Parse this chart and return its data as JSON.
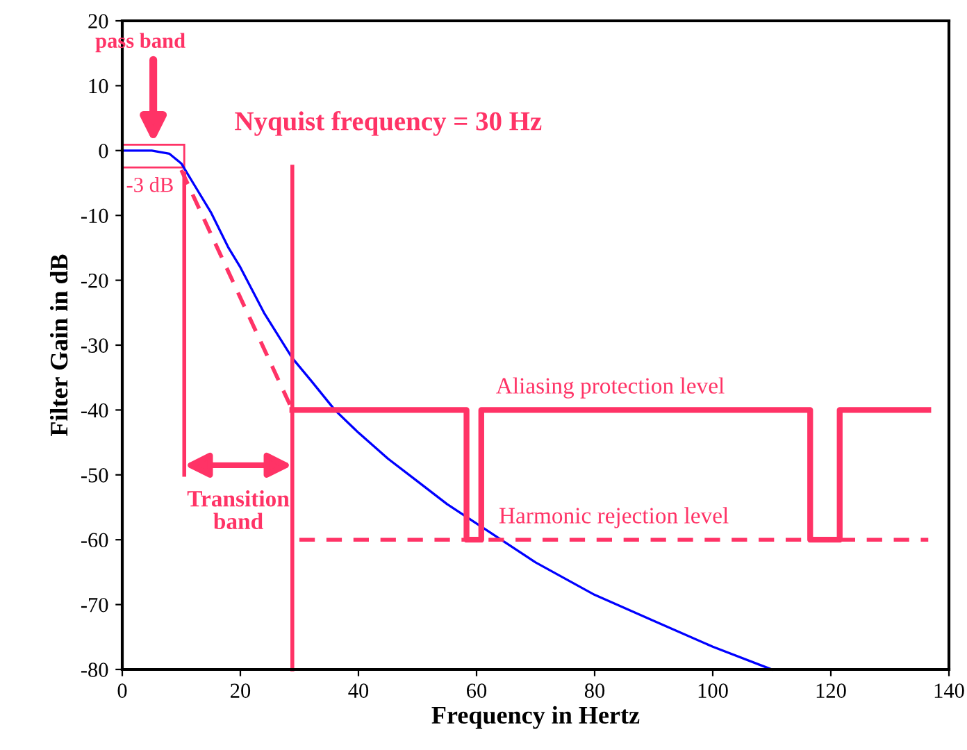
{
  "chart_data": {
    "type": "line",
    "xlabel": "Frequency in Hertz",
    "ylabel": "Filter Gain in dB",
    "xlim": [
      0,
      140
    ],
    "ylim": [
      -80,
      20
    ],
    "xticks": [
      0,
      20,
      40,
      60,
      80,
      100,
      120,
      140
    ],
    "yticks": [
      -80,
      -70,
      -60,
      -50,
      -40,
      -30,
      -20,
      -10,
      0,
      10,
      20
    ],
    "grid": false,
    "marker": "none",
    "series": [
      {
        "color": "#0000ff",
        "line_style": "solid",
        "x": [
          0,
          5,
          8,
          10,
          12,
          15,
          18,
          20,
          24,
          28.8,
          32,
          36,
          40,
          45,
          50,
          55,
          60,
          65,
          70,
          80,
          90,
          100,
          110
        ],
        "values": [
          0,
          0,
          -0.5,
          -2,
          -5,
          -9.5,
          -15,
          -18,
          -25,
          -32,
          -35.5,
          -40,
          -43.5,
          -47.5,
          -51,
          -54.5,
          -57.5,
          -60.5,
          -63.5,
          -68.5,
          -72.5,
          -76.5,
          -80
        ]
      },
      {
        "color": "#ff3366",
        "line_style": "solid",
        "x": [
          28.8,
          58.3,
          58.3,
          60.8,
          60.8,
          116.5,
          116.5,
          121.5,
          121.5,
          136.5
        ],
        "values": [
          -40,
          -40,
          -60,
          -60,
          -40,
          -40,
          -60,
          -60,
          -40,
          -40
        ]
      },
      {
        "color": "#ff3366",
        "line_style": "dashed",
        "x": [
          10,
          28.8
        ],
        "values": [
          -3,
          -40
        ]
      },
      {
        "color": "#ff3366",
        "line_style": "solid",
        "x": [
          10.5,
          10.5
        ],
        "values": [
          -3.5,
          -50
        ]
      },
      {
        "color": "#ff3366",
        "line_style": "solid",
        "x": [
          28.8,
          28.8
        ],
        "values": [
          -2.5,
          -80
        ]
      },
      {
        "color": "#ff3366",
        "line_style": "dashed",
        "x": [
          30,
          136.5
        ],
        "values": [
          -60,
          -60
        ]
      }
    ],
    "annotations": [
      "pass band",
      "-3 dB",
      "Nyquist frequency = 30 Hz",
      "Transition band",
      "Aliasing protection level",
      "Harmonic rejection level"
    ]
  }
}
